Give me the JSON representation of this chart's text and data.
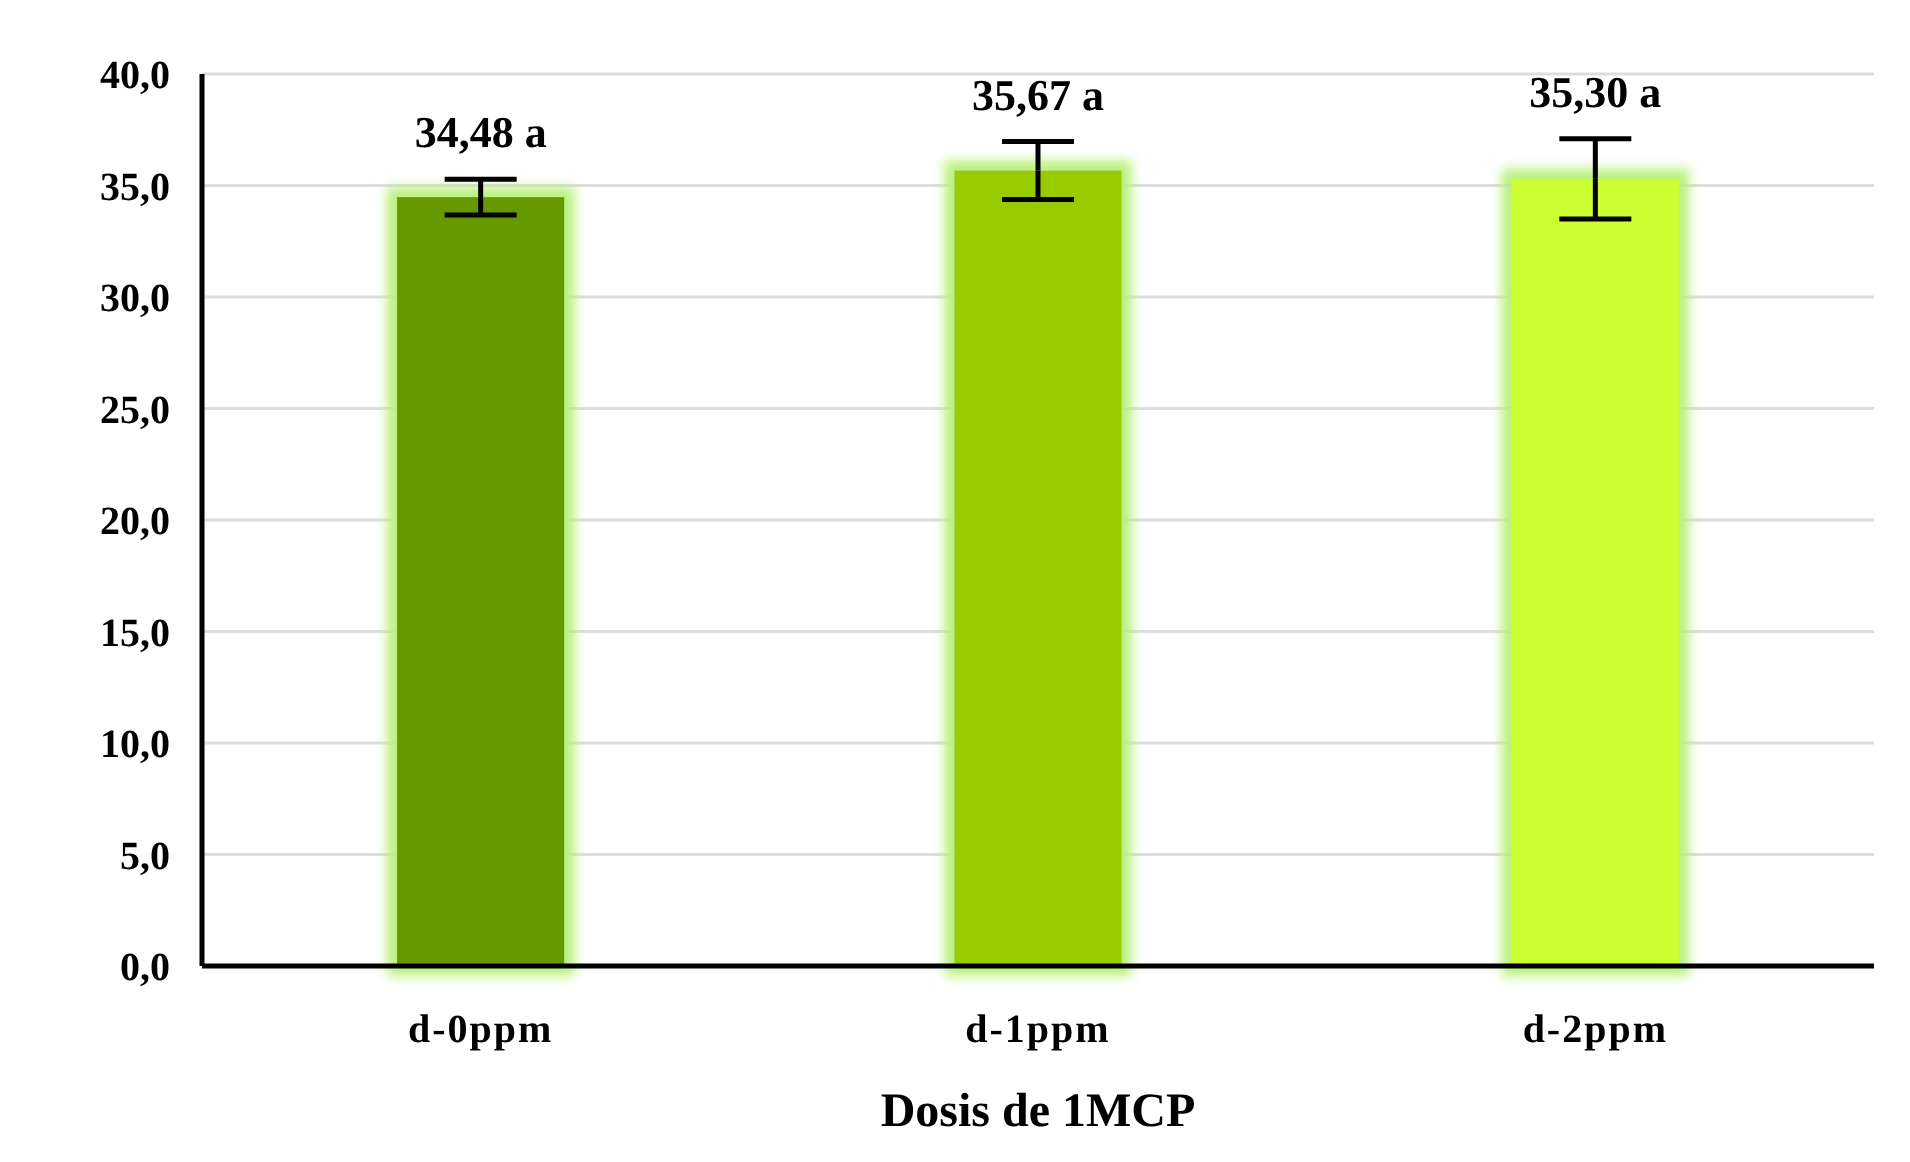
{
  "chart_data": {
    "type": "bar",
    "xlabel": "Dosis de 1MCP",
    "categories": [
      "d-0ppm",
      "d-1ppm",
      "d-2ppm"
    ],
    "values": [
      34.48,
      35.67,
      35.3
    ],
    "colors": [
      "#669900",
      "#99cc00",
      "#ccff33"
    ],
    "errors": [
      0.8,
      1.3,
      1.8
    ],
    "value_labels": [
      "34,48 a",
      "35,67 a",
      "35,30 a"
    ],
    "ylim": [
      0,
      40
    ],
    "yticks": [
      {
        "value": 0,
        "label": "0,0"
      },
      {
        "value": 5,
        "label": "5,0"
      },
      {
        "value": 10,
        "label": "10,0"
      },
      {
        "value": 15,
        "label": "15,0"
      },
      {
        "value": 20,
        "label": "20,0"
      },
      {
        "value": 25,
        "label": "25,0"
      },
      {
        "value": 30,
        "label": "30,0"
      },
      {
        "value": 35,
        "label": "35,0"
      },
      {
        "value": 40,
        "label": "40,0"
      }
    ],
    "grid": "y"
  }
}
